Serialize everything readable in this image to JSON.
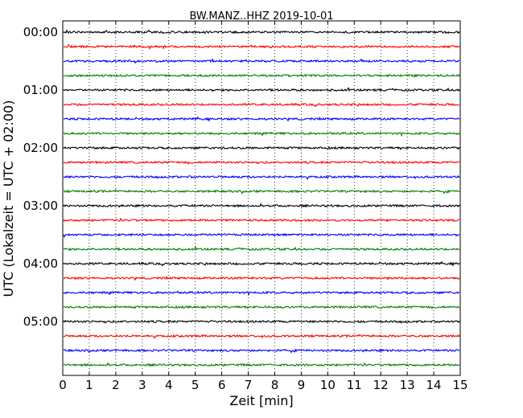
{
  "chart_data": {
    "type": "line",
    "title": "BW.MANZ..HHZ 2019-10-01",
    "xlabel": "Zeit  [min]",
    "ylabel": "UTC (Lokalzeit = UTC + 02:00)",
    "xlim": [
      0,
      15
    ],
    "x_ticks": [
      "0",
      "1",
      "2",
      "3",
      "4",
      "5",
      "6",
      "7",
      "8",
      "9",
      "10",
      "11",
      "12",
      "13",
      "14",
      "15"
    ],
    "y_tick_labels": [
      "00:00",
      "01:00",
      "02:00",
      "03:00",
      "04:00",
      "05:00"
    ],
    "grid": "vertical dotted",
    "trace_colors": [
      "#000000",
      "#ff0000",
      "#0000ff",
      "#008000"
    ],
    "traces": [
      {
        "start": "00:00",
        "color": "#000000"
      },
      {
        "start": "00:15",
        "color": "#ff0000"
      },
      {
        "start": "00:30",
        "color": "#0000ff"
      },
      {
        "start": "00:45",
        "color": "#008000"
      },
      {
        "start": "01:00",
        "color": "#000000"
      },
      {
        "start": "01:15",
        "color": "#ff0000"
      },
      {
        "start": "01:30",
        "color": "#0000ff"
      },
      {
        "start": "01:45",
        "color": "#008000"
      },
      {
        "start": "02:00",
        "color": "#000000"
      },
      {
        "start": "02:15",
        "color": "#ff0000"
      },
      {
        "start": "02:30",
        "color": "#0000ff"
      },
      {
        "start": "02:45",
        "color": "#008000"
      },
      {
        "start": "03:00",
        "color": "#000000"
      },
      {
        "start": "03:15",
        "color": "#ff0000"
      },
      {
        "start": "03:30",
        "color": "#0000ff"
      },
      {
        "start": "03:45",
        "color": "#008000"
      },
      {
        "start": "04:00",
        "color": "#000000"
      },
      {
        "start": "04:15",
        "color": "#ff0000"
      },
      {
        "start": "04:30",
        "color": "#0000ff"
      },
      {
        "start": "04:45",
        "color": "#008000"
      },
      {
        "start": "05:00",
        "color": "#000000"
      },
      {
        "start": "05:15",
        "color": "#ff0000"
      },
      {
        "start": "05:30",
        "color": "#0000ff"
      },
      {
        "start": "05:45",
        "color": "#008000"
      }
    ]
  }
}
